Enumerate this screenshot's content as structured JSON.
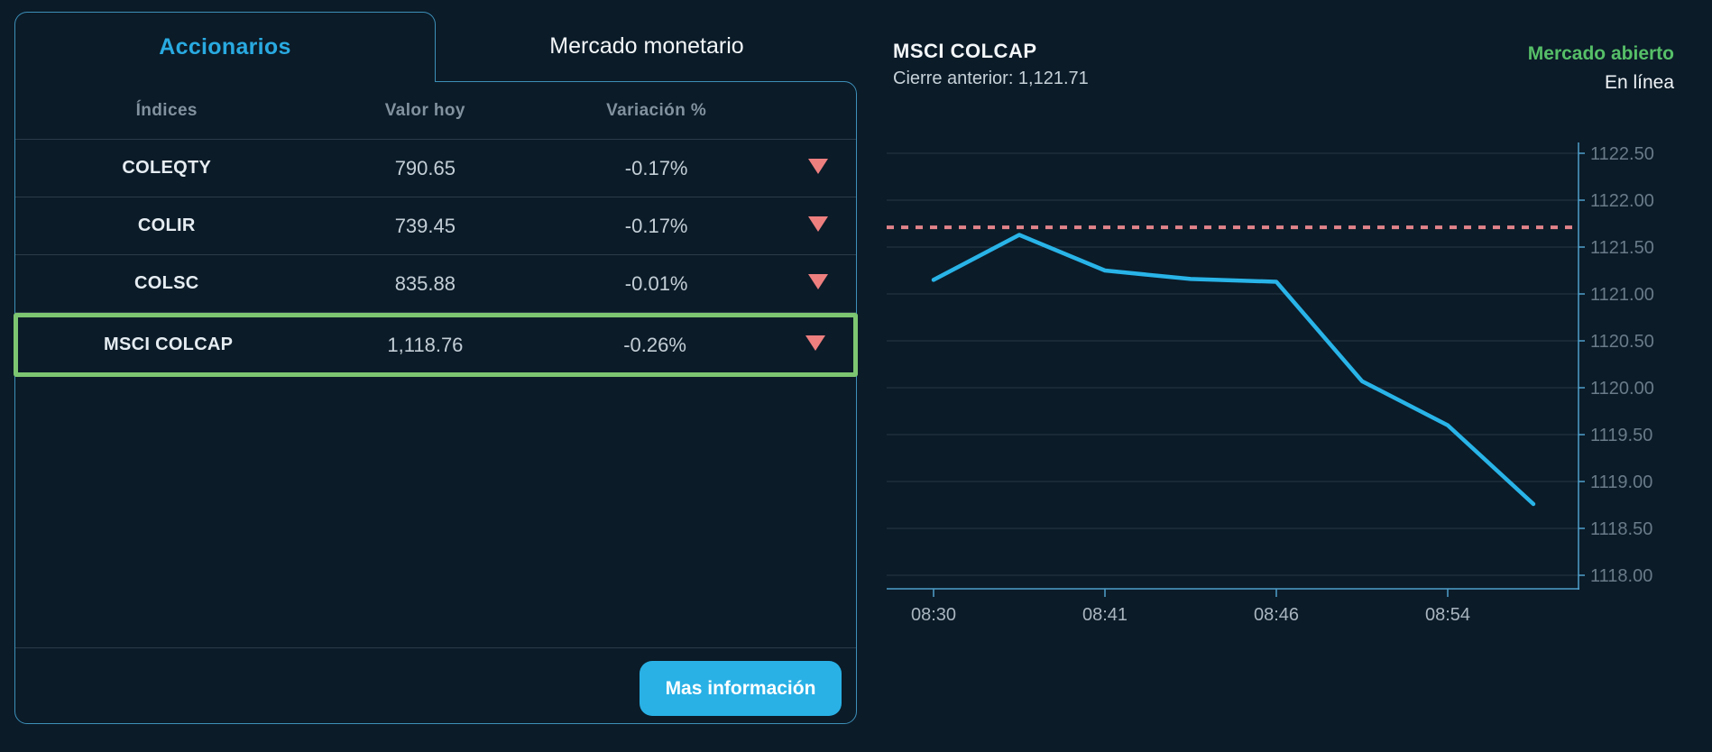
{
  "tabs": {
    "accionarios": "Accionarios",
    "mercado_monetario": "Mercado monetario"
  },
  "table": {
    "headers": [
      "Índices",
      "Valor hoy",
      "Variación %"
    ],
    "rows": [
      {
        "name": "COLEQTY",
        "value": "790.65",
        "variation": "-0.17%",
        "direction": "down",
        "selected": false
      },
      {
        "name": "COLIR",
        "value": "739.45",
        "variation": "-0.17%",
        "direction": "down",
        "selected": false
      },
      {
        "name": "COLSC",
        "value": "835.88",
        "variation": "-0.01%",
        "direction": "down",
        "selected": false
      },
      {
        "name": "MSCI COLCAP",
        "value": "1,118.76",
        "variation": "-0.26%",
        "direction": "down",
        "selected": true
      }
    ],
    "more_info_label": "Mas información"
  },
  "chart_header": {
    "title": "MSCI COLCAP",
    "previous_close_label": "Cierre anterior: 1,121.71",
    "market_status": "Mercado abierto",
    "connection_status": "En línea"
  },
  "colors": {
    "accent_blue": "#29aae1",
    "negative_red": "#ee7f7f",
    "highlight_green": "#7dc671",
    "market_open_green": "#56bf68",
    "line_cyan": "#29b4e8",
    "dashed_pink": "#e2838a",
    "axis_blue": "#4f9fca",
    "gridline": "#283744",
    "panel_border_blue": "#3d8fb8"
  },
  "chart_data": {
    "type": "line",
    "title": "MSCI COLCAP",
    "previous_close": 1121.71,
    "series": [
      {
        "name": "MSCI COLCAP",
        "values": [
          1121.15,
          1121.63,
          1121.25,
          1121.16,
          1121.13,
          1120.07,
          1119.6,
          1118.76
        ]
      }
    ],
    "x_tick_labels": [
      "08:30",
      "08:41",
      "08:46",
      "08:54"
    ],
    "x_tick_indices": [
      0,
      2,
      4,
      6
    ],
    "y_ticks": [
      "1122.50",
      "1122.00",
      "1121.50",
      "1121.00",
      "1120.50",
      "1120.00",
      "1119.50",
      "1119.00",
      "1118.50",
      "1118.00"
    ],
    "ylim": [
      1118.0,
      1122.5
    ],
    "grid": true,
    "legend": "none",
    "y_axis_position": "right"
  }
}
